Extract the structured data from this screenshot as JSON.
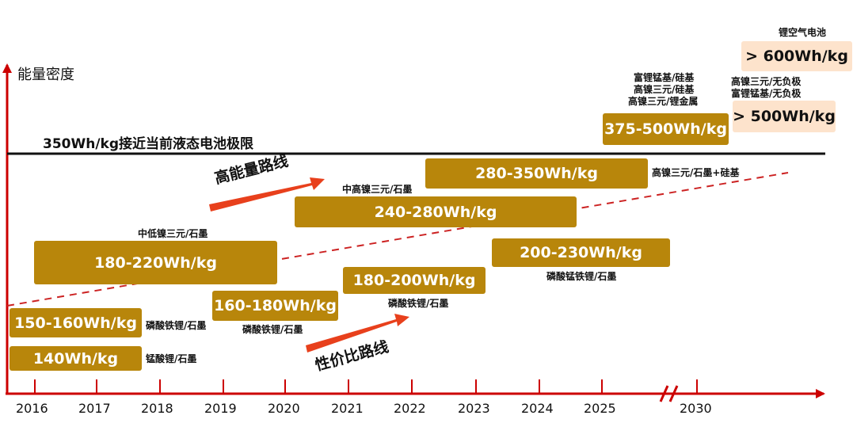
{
  "y_axis_label": "能量密度",
  "limit_line_label": "350Wh/kg接近当前液态电池极限",
  "route_high_energy": "高能量路线",
  "route_cost_performance": "性价比路线",
  "x_axis_ticks": [
    "2016",
    "2017",
    "2018",
    "2019",
    "2020",
    "2021",
    "2022",
    "2023",
    "2024",
    "2025",
    "2030"
  ],
  "boxes": {
    "b140": "140Wh/kg",
    "b150_160": "150-160Wh/kg",
    "b180_220": "180-220Wh/kg",
    "b160_180": "160-180Wh/kg",
    "b180_200": "180-200Wh/kg",
    "b240_280": "240-280Wh/kg",
    "b280_350": "280-350Wh/kg",
    "b200_230": "200-230Wh/kg",
    "b375_500": "375-500Wh/kg",
    "b500": "> 500Wh/kg",
    "b600": "> 600Wh/kg"
  },
  "labels": {
    "manganese_graphite": "锰酸锂/石墨",
    "lfp_graphite_2016": "磷酸铁锂/石墨",
    "mid_low_ni": "中低镍三元/石墨",
    "lfp_graphite_2019": "磷酸铁锂/石墨",
    "lfp_graphite_2021": "磷酸铁锂/石墨",
    "mid_high_ni": "中高镍三元/石墨",
    "high_ni_si": "高镍三元/石墨+硅基",
    "lmfp_graphite": "磷酸锰铁锂/石墨",
    "li_rich_mn_si": "富锂锰基/硅基",
    "high_ni_si2": "高镍三元/硅基",
    "high_ni_li_metal": "高镍三元/锂金属",
    "high_ni_anode_free": "高镍三元/无负极",
    "li_rich_anode_free": "富锂锰基/无负极",
    "li_air": "锂空气电池"
  },
  "colors": {
    "axis": "#cc0000",
    "box": "#b8860b",
    "arrow": "#e8401c",
    "dash": "#cc2222",
    "pink_box": "#fde3cc"
  }
}
